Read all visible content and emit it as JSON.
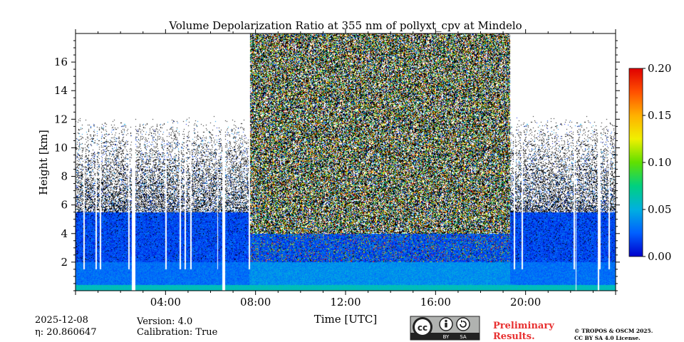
{
  "chart_data": {
    "type": "heatmap",
    "title": "Volume Depolarization Ratio at 355 nm of pollyxt_cpv at Mindelo",
    "xlabel": "Time [UTC]",
    "ylabel": "Height [km]",
    "xlim_hours": [
      0,
      24
    ],
    "ylim_km": [
      0,
      18
    ],
    "x_ticks": [
      {
        "hour": 4,
        "label": "04:00"
      },
      {
        "hour": 8,
        "label": "08:00"
      },
      {
        "hour": 12,
        "label": "12:00"
      },
      {
        "hour": 16,
        "label": "16:00"
      },
      {
        "hour": 20,
        "label": "20:00"
      }
    ],
    "y_ticks": [
      {
        "km": 2,
        "label": "2"
      },
      {
        "km": 4,
        "label": "4"
      },
      {
        "km": 6,
        "label": "6"
      },
      {
        "km": 8,
        "label": "8"
      },
      {
        "km": 10,
        "label": "10"
      },
      {
        "km": 12,
        "label": "12"
      },
      {
        "km": 14,
        "label": "14"
      },
      {
        "km": 16,
        "label": "16"
      }
    ],
    "colorbar": {
      "range": [
        0.0,
        0.2
      ],
      "ticks": [
        {
          "value": 0.0,
          "label": "0.00"
        },
        {
          "value": 0.05,
          "label": "0.05"
        },
        {
          "value": 0.1,
          "label": "0.10"
        },
        {
          "value": 0.15,
          "label": "0.15"
        },
        {
          "value": 0.2,
          "label": "0.20"
        }
      ],
      "colors": [
        "#0000cc",
        "#0060ff",
        "#00b0e0",
        "#00d080",
        "#60e000",
        "#f0f000",
        "#ffb000",
        "#ff5000",
        "#e00000"
      ]
    },
    "daytime_noise_window_hours": [
      7.7,
      19.3
    ],
    "data_gaps_hours": [
      {
        "start": 2.5,
        "end": 2.65
      },
      {
        "start": 6.5,
        "end": 6.62
      },
      {
        "start": 22.2,
        "end": 22.25
      },
      {
        "start": 23.2,
        "end": 23.26
      }
    ],
    "profile_dropouts_hours": [
      0.35,
      0.9,
      1.1,
      2.35,
      4.0,
      4.65,
      4.85,
      5.1,
      6.3,
      7.7,
      19.5,
      19.85,
      22.15,
      23.3,
      23.7
    ],
    "boundary_layer_top_km": {
      "night": 5.5,
      "day": 4.0
    }
  },
  "info": {
    "date": "2025-12-08",
    "eta_label": "η: 20.860647",
    "version": "Version: 4.0",
    "calibration": "Calibration: True"
  },
  "license_badge": {
    "cc": "cc",
    "by": "BY",
    "sa": "SA"
  },
  "preliminary": {
    "line1": "Preliminary",
    "line2": "Results."
  },
  "copyright": {
    "line1": "© TROPOS & OSCM 2025.",
    "line2": "CC BY SA 4.0 License."
  },
  "colors": {
    "axis": "#000000",
    "preliminary": "#e83030",
    "badge_bg": "#b0b2b0",
    "badge_dark": "#222222"
  }
}
